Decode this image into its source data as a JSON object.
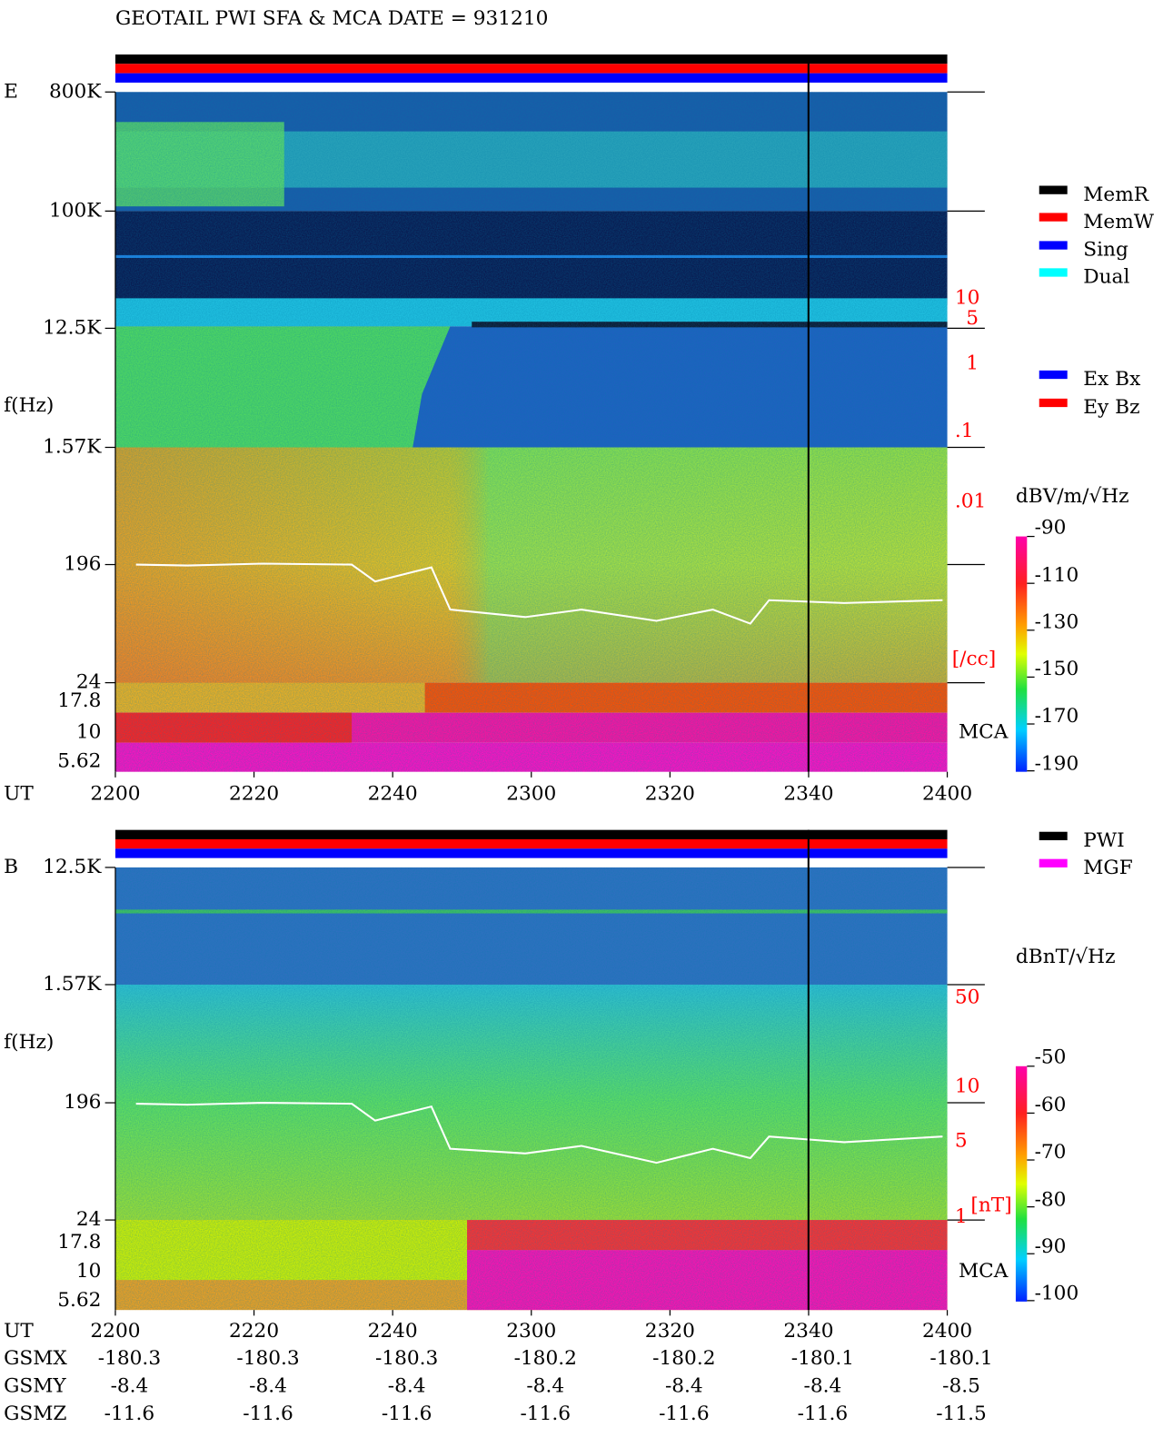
{
  "title": "GEOTAIL  PWI SFA & MCA   DATE = 931210",
  "panels": [
    {
      "label": "E",
      "freq_labels": [
        "800K",
        "100K",
        "12.5K",
        "1.57K",
        "196",
        "24",
        "17.8",
        "10",
        "5.62"
      ],
      "freq_axis_label": "f(Hz)",
      "time_axis_label": "UT",
      "time_labels": [
        "2200",
        "2220",
        "2240",
        "2300",
        "2320",
        "2340",
        "2400"
      ],
      "right_scale": [
        "10",
        "5",
        "1",
        ".1",
        ".01",
        "[/cc]"
      ],
      "mca_label": "MCA",
      "legend": [
        {
          "label": "MemR",
          "color": "#000000"
        },
        {
          "label": "MemW",
          "color": "#ff0000"
        },
        {
          "label": "Sing",
          "color": "#0000ff"
        },
        {
          "label": "Dual",
          "color": "#00ffff"
        }
      ],
      "legend2": [
        {
          "label": "Ex Bx",
          "color": "#0000ff"
        },
        {
          "label": "Ey Bz",
          "color": "#ff0000"
        }
      ],
      "colorbar_unit": "dBV/m/√Hz",
      "colorbar_labels": [
        "-90",
        "-110",
        "-130",
        "-150",
        "-170",
        "-190"
      ]
    },
    {
      "label": "B",
      "freq_labels": [
        "12.5K",
        "1.57K",
        "196",
        "24",
        "17.8",
        "10",
        "5.62"
      ],
      "freq_axis_label": "f(Hz)",
      "time_axis_label": "UT",
      "time_labels": [
        "2200",
        "2220",
        "2240",
        "2300",
        "2320",
        "2340",
        "2400"
      ],
      "right_scale": [
        "50",
        "10",
        "5",
        "1",
        "[nT]"
      ],
      "mca_label": "MCA",
      "legend": [
        {
          "label": "PWI",
          "color": "#000000"
        },
        {
          "label": "MGF",
          "color": "#ff00ff"
        }
      ],
      "colorbar_unit": "dBnT/√Hz",
      "colorbar_labels": [
        "-50",
        "-60",
        "-70",
        "-80",
        "-90",
        "-100"
      ]
    }
  ],
  "orbit": [
    {
      "label": "GSMX",
      "values": [
        "-180.3",
        "-180.3",
        "-180.3",
        "-180.2",
        "-180.2",
        "-180.1",
        "-180.1"
      ]
    },
    {
      "label": "GSMY",
      "values": [
        "-8.4",
        "-8.4",
        "-8.4",
        "-8.4",
        "-8.4",
        "-8.4",
        "-8.5"
      ]
    },
    {
      "label": "GSMZ",
      "values": [
        "-11.6",
        "-11.6",
        "-11.6",
        "-11.6",
        "-11.6",
        "-11.6",
        "-11.5"
      ]
    }
  ]
}
